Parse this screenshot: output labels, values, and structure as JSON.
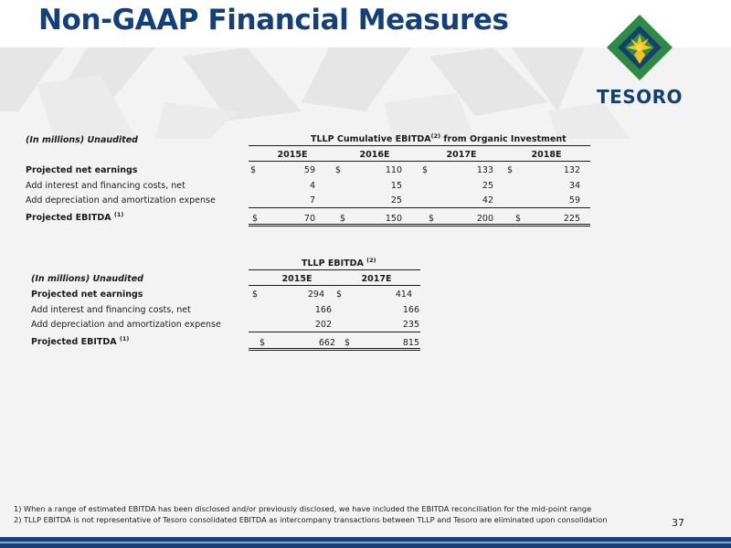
{
  "slide": {
    "title": "Non-GAAP Financial Measures",
    "page_number": "37",
    "logo_text": "TESORO"
  },
  "table1": {
    "unit_label": "(In millions) Unaudited",
    "title": "TLLP Cumulative EBITDA",
    "title_sup": "(2)",
    "title_suffix": " from Organic Investment",
    "columns": [
      "2015E",
      "2016E",
      "2017E",
      "2018E"
    ],
    "rows": [
      {
        "label": "Projected net earnings",
        "sup": "",
        "values": [
          "59",
          "110",
          "133",
          "132"
        ],
        "dollar": true
      },
      {
        "label": "Add interest and financing costs, net",
        "sup": "",
        "values": [
          "4",
          "15",
          "25",
          "34"
        ],
        "dollar": false
      },
      {
        "label": "Add depreciation and amortization expense",
        "sup": "",
        "values": [
          "7",
          "25",
          "42",
          "59"
        ],
        "dollar": false
      },
      {
        "label": "Projected EBITDA ",
        "sup": "(1)",
        "values": [
          "70",
          "150",
          "200",
          "225"
        ],
        "dollar": true
      }
    ]
  },
  "table2": {
    "unit_label": "(In millions) Unaudited",
    "title": "TLLP EBITDA ",
    "title_sup": "(2)",
    "columns": [
      "2015E",
      "2017E"
    ],
    "rows": [
      {
        "label": "Projected net earnings",
        "sup": "",
        "values": [
          "294",
          "414"
        ],
        "dollar": true
      },
      {
        "label": "Add interest and financing costs, net",
        "sup": "",
        "values": [
          "166",
          "166"
        ],
        "dollar": false
      },
      {
        "label": "Add depreciation and amortization expense",
        "sup": "",
        "values": [
          "202",
          "235"
        ],
        "dollar": false
      },
      {
        "label": "Projected EBITDA ",
        "sup": "(1)",
        "values": [
          "662",
          "815"
        ],
        "dollar": true
      }
    ]
  },
  "currency_symbol": "$",
  "footnotes": [
    "1) When a range of estimated EBITDA has been disclosed and/or previously disclosed, we have included the EBITDA reconciliation for the mid-point range",
    "2) TLLP EBITDA is not representative of Tesoro consolidated EBITDA as intercompany transactions between TLLP and Tesoro are eliminated upon consolidation"
  ],
  "colors": {
    "title": "#143f7a",
    "logo_green": "#2e8b45",
    "logo_yellow": "#f4c21c",
    "logo_blue": "#14406f",
    "bottom_bar": "#17407a"
  }
}
